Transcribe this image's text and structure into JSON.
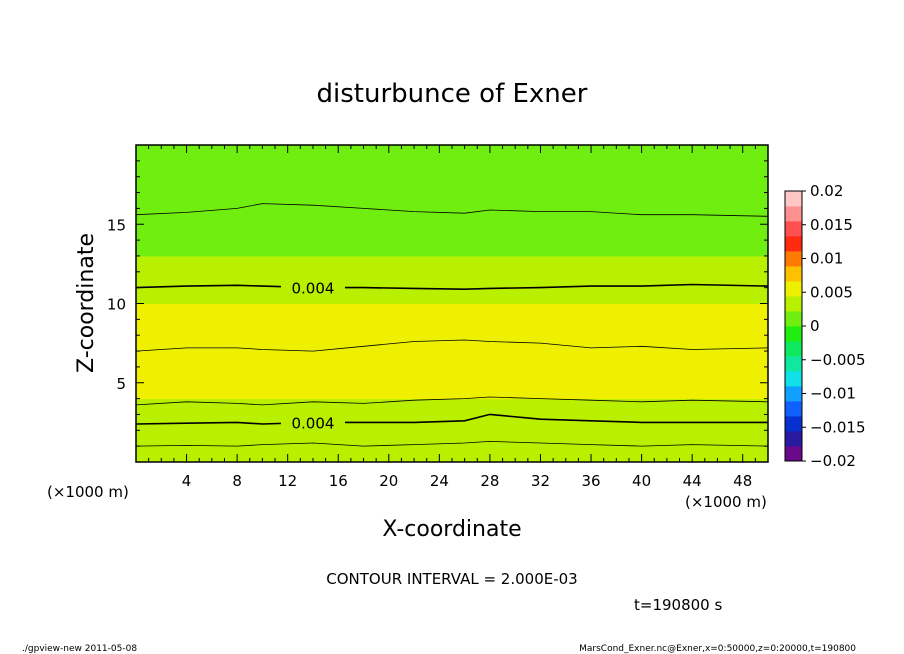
{
  "chart_data": {
    "type": "contour",
    "title": "disturbunce of Exner",
    "xlabel": "X-coordinate",
    "ylabel": "Z-coordinate",
    "x_unit": "(×1000 m)",
    "y_unit": "(×1000 m)",
    "xlim": [
      0,
      50
    ],
    "ylim": [
      0,
      20
    ],
    "x_ticks": [
      4,
      8,
      12,
      16,
      20,
      24,
      28,
      32,
      36,
      40,
      44,
      48
    ],
    "y_ticks": [
      5,
      10,
      15
    ],
    "contour_interval_label": "CONTOUR INTERVAL = 2.000E-03",
    "time_label": "t=190800 s",
    "colorbar": {
      "ticks": [
        "0.02",
        "0.015",
        "0.01",
        "0.005",
        "0",
        "−0.005",
        "−0.01",
        "−0.015",
        "−0.02"
      ],
      "tick_values": [
        0.02,
        0.015,
        0.01,
        0.005,
        0,
        -0.005,
        -0.01,
        -0.015,
        -0.02
      ],
      "min": -0.02,
      "max": 0.02,
      "colors": [
        "#6a0a8a",
        "#2a1aa0",
        "#0830d0",
        "#1060ff",
        "#10a0ff",
        "#10e0e8",
        "#10e8a0",
        "#10e860",
        "#20ee10",
        "#70ee10",
        "#b8f000",
        "#eef000",
        "#ffc000",
        "#ff7a00",
        "#ff2a10",
        "#ff5050",
        "#ff9090",
        "#ffc6c6"
      ]
    },
    "contour_lines": [
      {
        "level": 0.0006,
        "z": [
          1.0,
          1.05,
          1.0,
          1.1,
          1.2,
          1.0,
          1.1,
          1.2,
          1.3,
          1.2,
          1.1,
          1.0,
          1.1,
          1.0
        ]
      },
      {
        "level": 0.004,
        "label": "0.004",
        "z": [
          2.4,
          2.45,
          2.5,
          2.4,
          2.5,
          2.5,
          2.5,
          2.6,
          3.0,
          2.7,
          2.6,
          2.5,
          2.5,
          2.5
        ]
      },
      {
        "level": 0.002,
        "z": [
          3.6,
          3.8,
          3.7,
          3.6,
          3.8,
          3.7,
          3.9,
          4.0,
          4.1,
          4.0,
          3.9,
          3.8,
          3.9,
          3.8
        ]
      },
      {
        "level": 0.002,
        "z": [
          7.0,
          7.2,
          7.2,
          7.1,
          7.0,
          7.3,
          7.6,
          7.7,
          7.6,
          7.5,
          7.2,
          7.3,
          7.1,
          7.2
        ]
      },
      {
        "level": 0.004,
        "label": "0.004",
        "z": [
          11.0,
          11.1,
          11.15,
          11.1,
          11.0,
          11.0,
          10.95,
          10.9,
          10.95,
          11.0,
          11.1,
          11.1,
          11.2,
          11.1
        ]
      },
      {
        "level": 0.002,
        "z": [
          15.6,
          15.75,
          16.0,
          16.3,
          16.2,
          16.0,
          15.8,
          15.7,
          15.9,
          15.8,
          15.8,
          15.6,
          15.6,
          15.5
        ]
      }
    ],
    "contour_x": [
      0,
      4,
      8,
      10,
      14,
      18,
      22,
      26,
      28,
      32,
      36,
      40,
      44,
      50
    ],
    "band_levels": [
      0.0025,
      0.003,
      0.0035,
      0.004,
      0.0045,
      0.005,
      0.006,
      0.006,
      0.006,
      0.0045,
      0.004,
      0.003,
      0.0025,
      0.002,
      0.0015,
      0.001,
      0.0008,
      0.0006,
      0.0005,
      0.0004
    ]
  },
  "footer": {
    "left": "./gpview-new   2011-05-08",
    "right": "MarsCond_Exner.nc@Exner,x=0:50000,z=0:20000,t=190800"
  }
}
